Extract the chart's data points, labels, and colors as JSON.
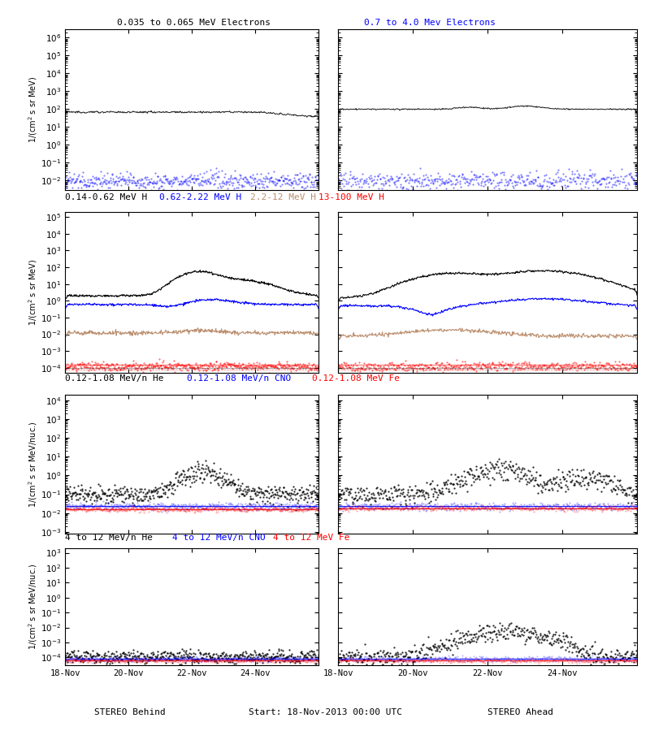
{
  "title_row1_left": "0.035 to 0.065 MeV Electrons",
  "title_row1_right": "0.7 to 4.0 Mev Electrons",
  "title_row2_left_parts": [
    [
      "0.14-0.62 MeV H",
      "black"
    ],
    [
      "0.62-2.22 MeV H",
      "blue"
    ],
    [
      "2.2-12 MeV H",
      "#BC8F6F"
    ],
    [
      "13-100 MeV H",
      "red"
    ]
  ],
  "title_row3_parts": [
    [
      "0.12-1.08 MeV/n He",
      "black"
    ],
    [
      "0.12-1.08 MeV/n CNO",
      "blue"
    ],
    [
      "0.12-1.08 MeV Fe",
      "red"
    ]
  ],
  "title_row4_parts": [
    [
      "4 to 12 MeV/n He",
      "black"
    ],
    [
      "4 to 12 MeV/n CNO",
      "blue"
    ],
    [
      "4 to 12 MeV Fe",
      "red"
    ]
  ],
  "xlabel_center": "Start: 18-Nov-2013 00:00 UTC",
  "xlabel_left": "STEREO Behind",
  "xlabel_right": "STEREO Ahead",
  "xtick_labels": [
    "18-Nov",
    "20-Nov",
    "22-Nov",
    "24-Nov"
  ],
  "row1_ylim": [
    0.003,
    3000000.0
  ],
  "row2_ylim": [
    5e-05,
    200000.0
  ],
  "row3_ylim": [
    0.0008,
    20000.0
  ],
  "row4_ylim": [
    3e-05,
    2000.0
  ],
  "brown_color": "#BC8F6F",
  "tan_color": "#C4956A"
}
